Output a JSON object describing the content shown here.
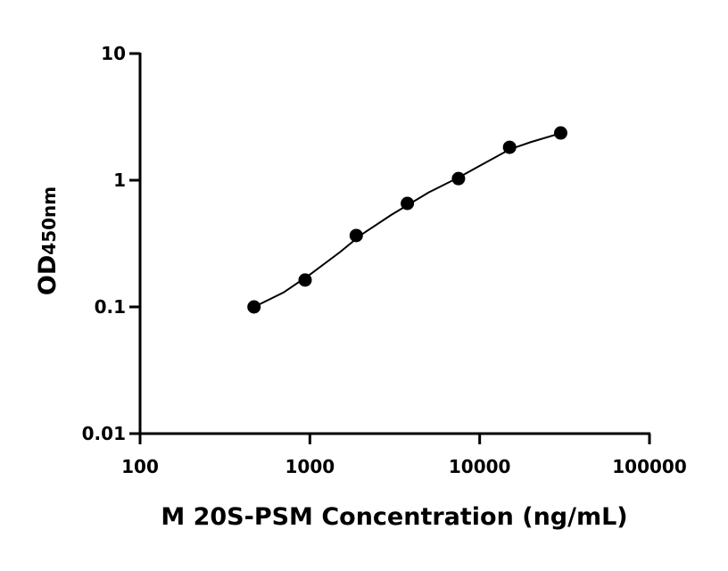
{
  "chart_data": {
    "type": "scatter",
    "x_label": "M 20S-PSM Concentration (ng/mL)",
    "y_label": "OD",
    "y_label_sub": "450nm",
    "x_scale": "log",
    "y_scale": "log",
    "xlim": [
      100,
      100000
    ],
    "xticks": [
      100,
      1000,
      10000,
      100000
    ],
    "ylim": [
      0.01,
      10
    ],
    "yticks": [
      0.01,
      0.1,
      1,
      10
    ],
    "grid": false,
    "x": [
      468.75,
      937.5,
      1875,
      3750,
      7500,
      15000,
      30000
    ],
    "series": [
      {
        "color": "#000000",
        "values": [
          0.1,
          0.163,
          0.366,
          0.656,
          1.03,
          1.82,
          2.36
        ]
      }
    ],
    "fit": {
      "color": "#000000",
      "x": [
        470,
        700,
        1000,
        1500,
        2000,
        3000,
        5000,
        7500,
        10000,
        15000,
        20000,
        30000
      ],
      "values": [
        0.1,
        0.13,
        0.18,
        0.27,
        0.37,
        0.53,
        0.8,
        1.05,
        1.3,
        1.75,
        2.0,
        2.35
      ]
    }
  }
}
